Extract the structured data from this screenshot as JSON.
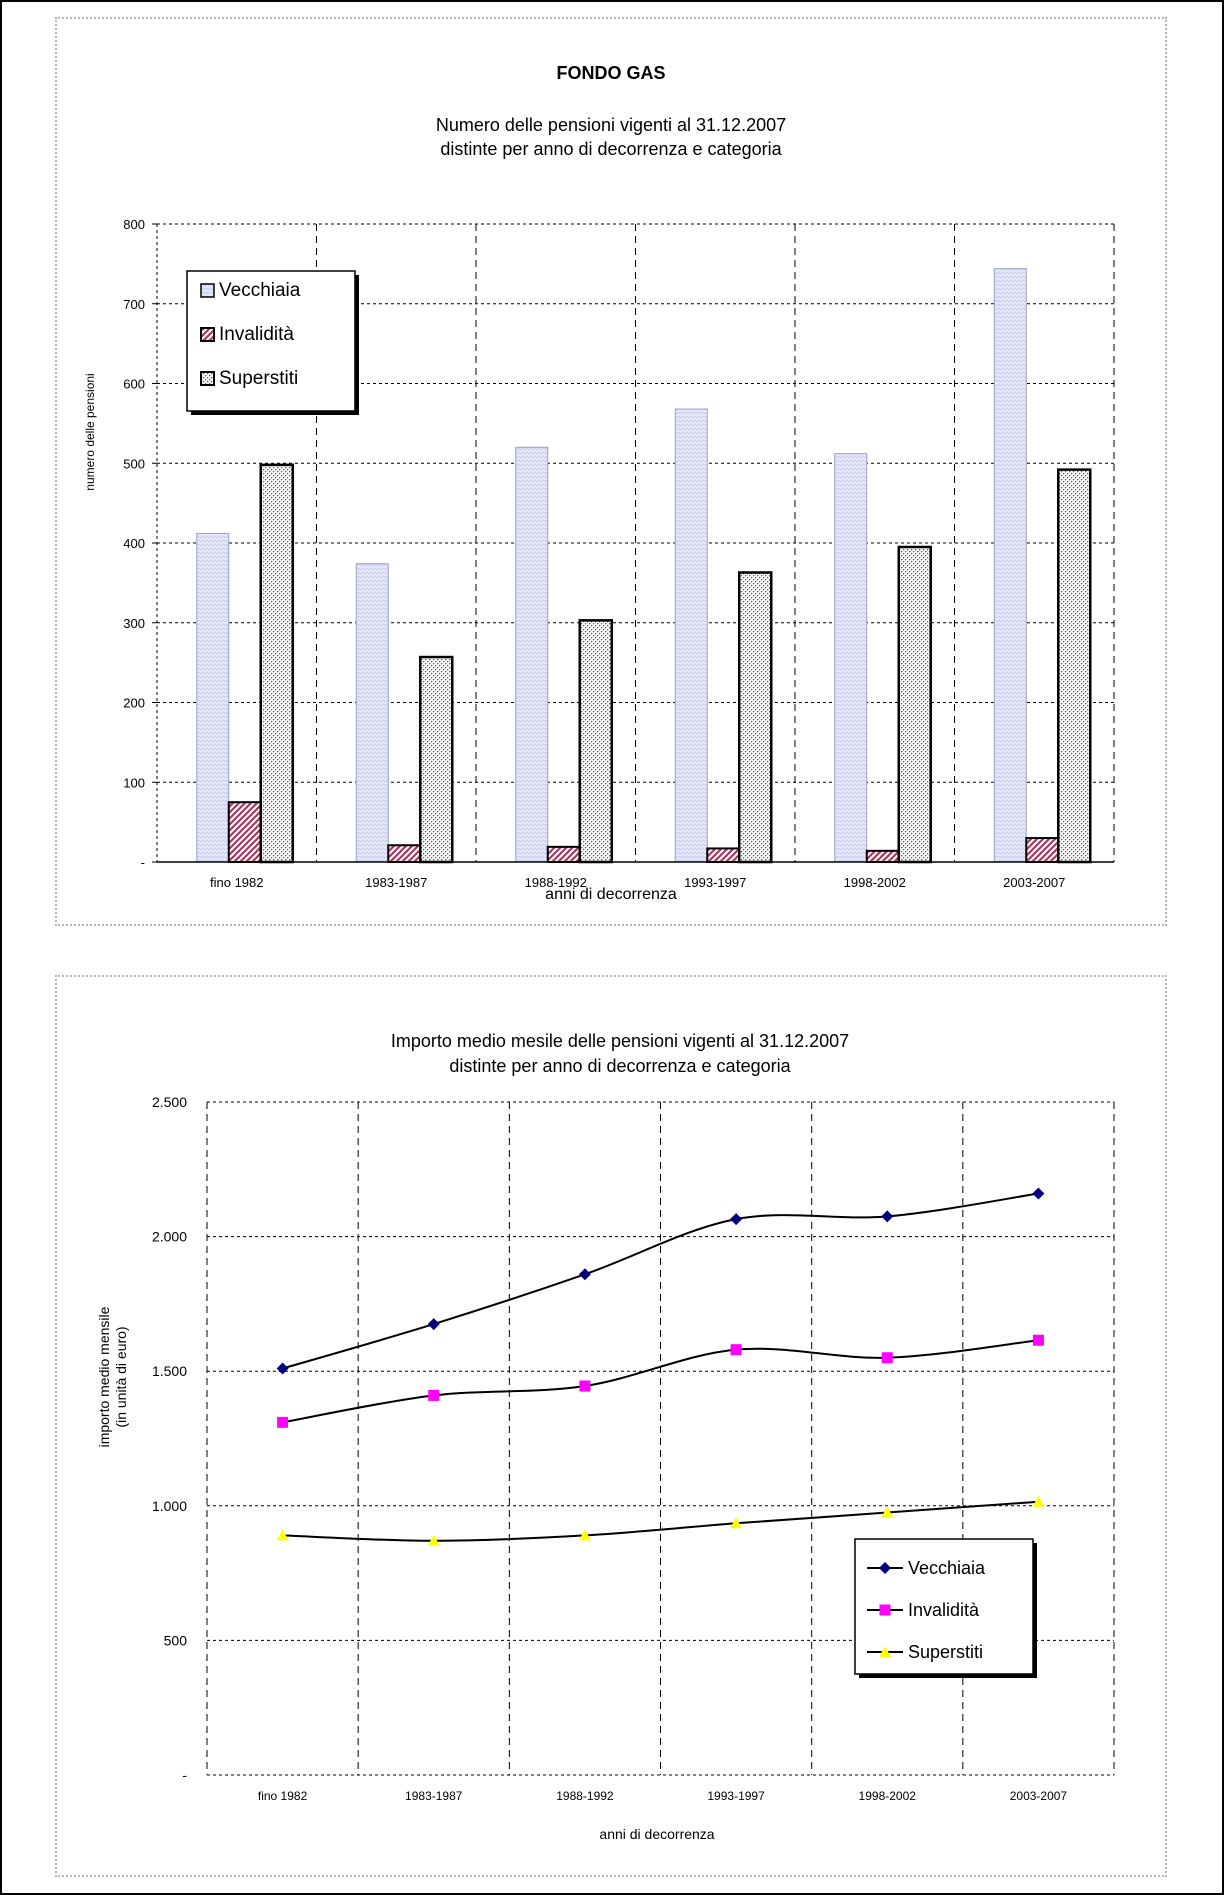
{
  "colors": {
    "vecchiaia_fill": "#c8cdf0",
    "invalidita_fill": "#a33a62",
    "superstiti_fill": "#9a9a9a",
    "line_vecchiaia": "#000080",
    "line_invalidita": "#ff00ff",
    "line_superstiti": "#ffff00"
  },
  "chart_data": [
    {
      "type": "bar",
      "title": "FONDO GAS",
      "subtitle": [
        "Numero delle pensioni vigenti al 31.12.2007",
        "distinte per anno di decorrenza e categoria"
      ],
      "xlabel": "anni di decorrenza",
      "ylabel": "numero delle pensioni",
      "ylim": [
        0,
        800
      ],
      "yticks": [
        "-",
        "100",
        "200",
        "300",
        "400",
        "500",
        "600",
        "700",
        "800"
      ],
      "categories": [
        "fino 1982",
        "1983-1987",
        "1988-1992",
        "1993-1997",
        "1998-2002",
        "2003-2007"
      ],
      "series": [
        {
          "name": "Vecchiaia",
          "values": [
            412,
            374,
            520,
            568,
            512,
            744
          ]
        },
        {
          "name": "Invalidità",
          "values": [
            75,
            21,
            19,
            17,
            14,
            30
          ]
        },
        {
          "name": "Superstiti",
          "values": [
            498,
            257,
            303,
            363,
            395,
            492
          ]
        }
      ],
      "grid": true,
      "legend": "top-left"
    },
    {
      "type": "line",
      "subtitle": [
        "Importo medio mesile delle pensioni vigenti al 31.12.2007",
        "distinte per anno di decorrenza e categoria"
      ],
      "xlabel": "anni di decorrenza",
      "ylabel": [
        "importo medio mensile",
        "(in unità di euro)"
      ],
      "ylim": [
        0,
        2500
      ],
      "yticks": [
        "-",
        "500",
        "1.000",
        "1.500",
        "2.000",
        "2.500"
      ],
      "categories": [
        "fino 1982",
        "1983-1987",
        "1988-1992",
        "1993-1997",
        "1998-2002",
        "2003-2007"
      ],
      "series": [
        {
          "name": "Vecchiaia",
          "values": [
            1510,
            1675,
            1860,
            2065,
            2075,
            2160
          ]
        },
        {
          "name": "Invalidità",
          "values": [
            1310,
            1410,
            1445,
            1580,
            1550,
            1615
          ]
        },
        {
          "name": "Superstiti",
          "values": [
            890,
            870,
            890,
            935,
            975,
            1015
          ]
        }
      ],
      "grid": true,
      "legend": "bottom-right"
    }
  ]
}
